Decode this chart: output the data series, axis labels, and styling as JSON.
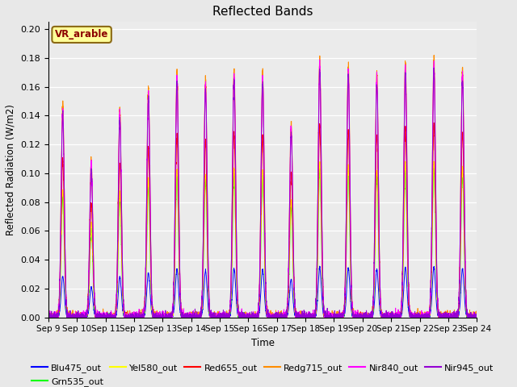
{
  "title": "Reflected Bands",
  "xlabel": "Time",
  "ylabel": "Reflected Radiation (W/m2)",
  "annotation": "VR_arable",
  "annotation_color": "#8B0000",
  "annotation_bg": "#FFFF99",
  "annotation_edge": "#8B6914",
  "ylim": [
    0.0,
    0.205
  ],
  "yticks": [
    0.0,
    0.02,
    0.04,
    0.06,
    0.08,
    0.1,
    0.12,
    0.14,
    0.16,
    0.18,
    0.2
  ],
  "date_start": 9,
  "date_end": 24,
  "series": [
    {
      "name": "Blu475_out",
      "color": "#0000FF",
      "peak_scale": 0.035
    },
    {
      "name": "Grn535_out",
      "color": "#00FF00",
      "peak_scale": 0.103
    },
    {
      "name": "Yel580_out",
      "color": "#FFFF00",
      "peak_scale": 0.108
    },
    {
      "name": "Red655_out",
      "color": "#FF0000",
      "peak_scale": 0.133
    },
    {
      "name": "Redg715_out",
      "color": "#FF8C00",
      "peak_scale": 0.18
    },
    {
      "name": "Nir840_out",
      "color": "#FF00FF",
      "peak_scale": 0.176
    },
    {
      "name": "Nir945_out",
      "color": "#9400D3",
      "peak_scale": 0.171
    }
  ],
  "n_days": 15,
  "points_per_day": 288,
  "sigma": 0.055,
  "background_color": "#E8E8E8",
  "axes_bg": "#EBEBEB",
  "figsize": [
    6.4,
    4.8
  ],
  "dpi": 100,
  "day_peak_factors": [
    0.82,
    0.6,
    0.8,
    0.88,
    0.95,
    0.92,
    0.96,
    0.95,
    0.75,
    1.0,
    0.98,
    0.95,
    0.99,
    1.0,
    0.96
  ]
}
